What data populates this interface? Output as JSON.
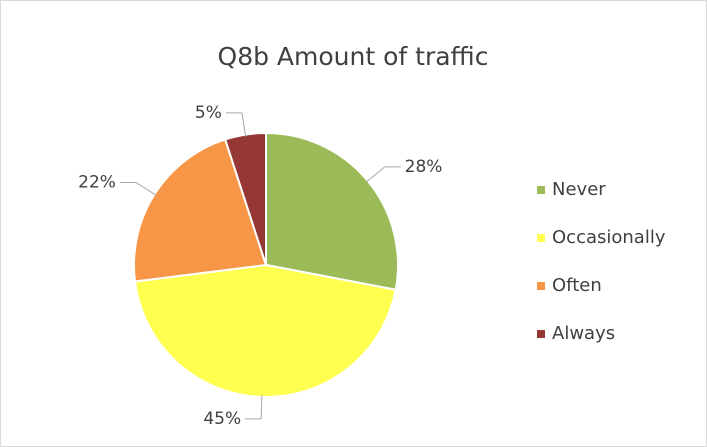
{
  "chart_data": {
    "type": "pie",
    "title": "Q8b Amount of traffic",
    "categories": [
      "Never",
      "Occasionally",
      "Often",
      "Always"
    ],
    "values": [
      28,
      45,
      22,
      5
    ],
    "value_labels": [
      "28%",
      "45%",
      "22%",
      "5%"
    ],
    "colors": [
      "#9bbb59",
      "#ffff4f",
      "#f79646",
      "#953735"
    ],
    "legend": "right"
  }
}
